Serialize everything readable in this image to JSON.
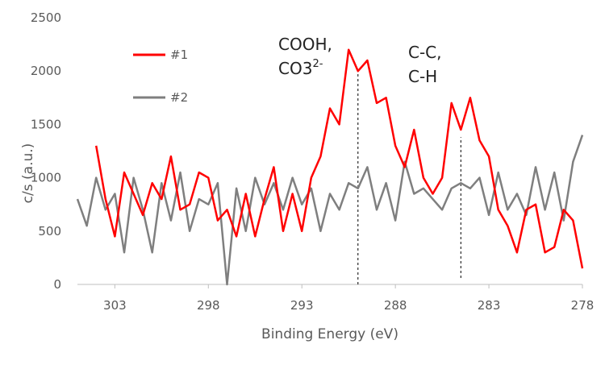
{
  "chart_data": {
    "type": "line",
    "xlabel": "Binding Energy (eV)",
    "ylabel": "c/s (a.u.)",
    "x": [
      305,
      304.5,
      304,
      303.5,
      303,
      302.5,
      302,
      301.5,
      301,
      300.5,
      300,
      299.5,
      299,
      298.5,
      298,
      297.5,
      297,
      296.5,
      296,
      295.5,
      295,
      294.5,
      294,
      293.5,
      293,
      292.5,
      292,
      291.5,
      291,
      290.5,
      290,
      289.5,
      289,
      288.5,
      288,
      287.5,
      287,
      286.5,
      286,
      285.5,
      285,
      284.5,
      284,
      283.5,
      283,
      282.5,
      282,
      281.5,
      281,
      280.5,
      280,
      279.5,
      279,
      278.5,
      278
    ],
    "series": [
      {
        "name": "#1",
        "color": "#ff0000",
        "values": [
          null,
          null,
          1300,
          800,
          450,
          1050,
          850,
          650,
          950,
          800,
          1200,
          700,
          750,
          1050,
          1000,
          600,
          700,
          450,
          850,
          450,
          800,
          1100,
          500,
          850,
          500,
          1000,
          1200,
          1650,
          1500,
          2200,
          2000,
          2100,
          1700,
          1750,
          1300,
          1100,
          1450,
          1000,
          850,
          1000,
          1700,
          1450,
          1750,
          1350,
          1200,
          700,
          550,
          300,
          700,
          750,
          300,
          350,
          700,
          600,
          150
        ]
      },
      {
        "name": "#2",
        "color": "#7f7f7f",
        "values": [
          800,
          550,
          1000,
          700,
          850,
          300,
          1000,
          700,
          300,
          950,
          600,
          1050,
          500,
          800,
          750,
          950,
          0,
          900,
          500,
          1000,
          750,
          950,
          700,
          1000,
          750,
          900,
          500,
          850,
          700,
          950,
          900,
          1100,
          700,
          950,
          600,
          1150,
          850,
          900,
          800,
          700,
          900,
          950,
          900,
          1000,
          650,
          1050,
          700,
          850,
          650,
          1100,
          700,
          1050,
          600,
          1150,
          1400
        ]
      }
    ],
    "xlim": [
      305,
      278
    ],
    "xticks": [
      303,
      298,
      293,
      288,
      283,
      278
    ],
    "ylim": [
      0,
      2500
    ],
    "yticks": [
      0,
      500,
      1000,
      1500,
      2000,
      2500
    ],
    "grid": false,
    "legend": "upper left",
    "annotations": [
      {
        "text": [
          "COOH,",
          "CO3",
          "2-"
        ]
      },
      {
        "text": [
          "C-C,",
          "C-H"
        ]
      }
    ],
    "reference_lines": [
      {
        "x": 290.0,
        "y": [
          0,
          2000
        ]
      },
      {
        "x": 284.5,
        "y": [
          60,
          1380
        ]
      }
    ]
  }
}
